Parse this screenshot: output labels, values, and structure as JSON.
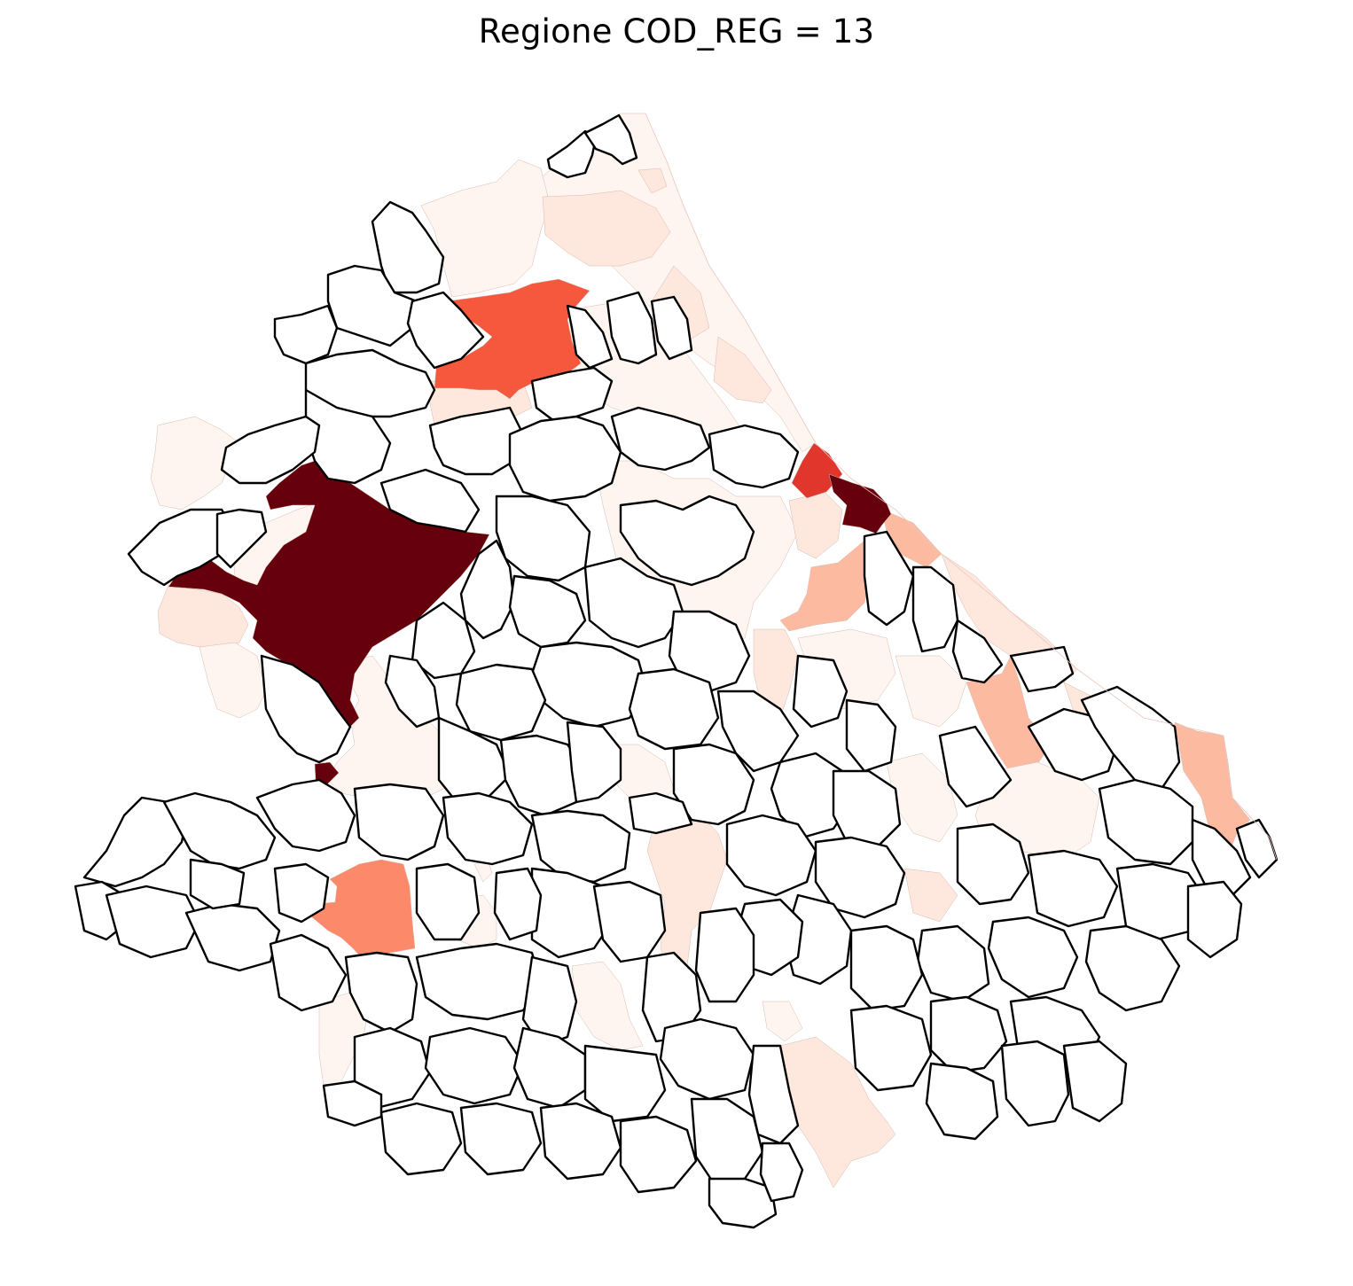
{
  "title": "Regione COD_REG = 13",
  "colormap": "Reds",
  "colors": {
    "zero": "#ffffff",
    "boundary": "#000000",
    "level_0": "#fff5f0",
    "level_1": "#fee7dc",
    "level_2": "#fcbba1",
    "level_3": "#fc8a6a",
    "level_4": "#f6583e",
    "level_5": "#e0362c",
    "level_6": "#67000d"
  },
  "regions": {
    "zero_fill_outline": "black",
    "nonzero_outline": "none"
  }
}
